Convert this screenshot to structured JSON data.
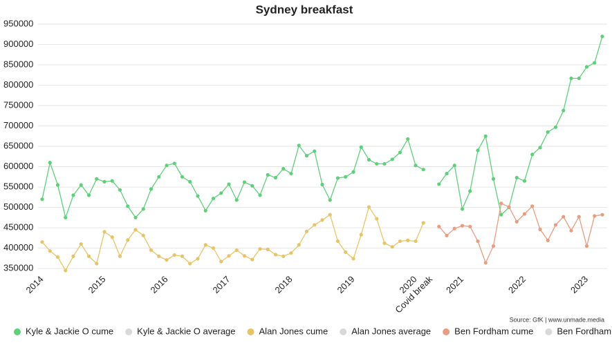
{
  "chart_data": {
    "type": "line",
    "title": "Sydney breakfast",
    "source": "Source: GfK | www.unmade.media",
    "categories": [
      "2014",
      null,
      null,
      null,
      null,
      null,
      null,
      null,
      "2015",
      null,
      null,
      null,
      null,
      null,
      null,
      null,
      "2016",
      null,
      null,
      null,
      null,
      null,
      null,
      null,
      "2017",
      null,
      null,
      null,
      null,
      null,
      null,
      null,
      "2018",
      null,
      null,
      null,
      null,
      null,
      null,
      null,
      "2019",
      null,
      null,
      null,
      null,
      null,
      null,
      null,
      "2020",
      null,
      "Covid break",
      null,
      null,
      null,
      "2021",
      null,
      null,
      null,
      null,
      null,
      null,
      null,
      "2022",
      null,
      null,
      null,
      null,
      null,
      null,
      null,
      "2023",
      null,
      null
    ],
    "ylim": [
      340000,
      950000
    ],
    "yticks": [
      350000,
      400000,
      450000,
      500000,
      550000,
      600000,
      650000,
      700000,
      750000,
      800000,
      850000,
      900000,
      950000
    ],
    "grid": true,
    "series": [
      {
        "name": "Kyle & Jackie O cume",
        "color": "#5fd07a",
        "values": [
          520000,
          610000,
          555000,
          475000,
          530000,
          555000,
          530000,
          570000,
          563000,
          565000,
          543000,
          503000,
          475000,
          496000,
          545000,
          575000,
          603000,
          608000,
          575000,
          563000,
          528000,
          492000,
          522000,
          535000,
          557000,
          518000,
          562000,
          553000,
          530000,
          580000,
          573000,
          595000,
          583000,
          652000,
          627000,
          638000,
          556000,
          518000,
          572000,
          575000,
          587000,
          648000,
          617000,
          607000,
          607000,
          618000,
          635000,
          668000,
          603000,
          593000,
          null,
          557000,
          583000,
          603000,
          496000,
          540000,
          640000,
          675000,
          570000,
          482000,
          500000,
          573000,
          565000,
          630000,
          647000,
          685000,
          697000,
          738000,
          817000,
          817000,
          845000,
          855000,
          920000
        ]
      },
      {
        "name": "Kyle & Jackie O average",
        "color": "#d9d9d9",
        "values": [
          null,
          null,
          null,
          null,
          null,
          null,
          null,
          null,
          null,
          null,
          null,
          null,
          null,
          null,
          null,
          null,
          null,
          null,
          null,
          null,
          null,
          null,
          null,
          null,
          null,
          null,
          null,
          null,
          null,
          null,
          null,
          null,
          null,
          null,
          null,
          null,
          null,
          null,
          null,
          null,
          null,
          null,
          null,
          null,
          null,
          null,
          null,
          null,
          null,
          null,
          null,
          null,
          null,
          null,
          null,
          null,
          null,
          null,
          null,
          null,
          null,
          null,
          null,
          null,
          null,
          null,
          null,
          null,
          null,
          null,
          null,
          null,
          null
        ]
      },
      {
        "name": "Alan Jones cume",
        "color": "#e8c468",
        "values": [
          415000,
          393000,
          378000,
          345000,
          380000,
          410000,
          380000,
          362000,
          440000,
          427000,
          380000,
          420000,
          445000,
          431000,
          395000,
          380000,
          371000,
          383000,
          380000,
          362000,
          374000,
          408000,
          400000,
          367000,
          381000,
          395000,
          381000,
          372000,
          398000,
          397000,
          384000,
          380000,
          388000,
          408000,
          441000,
          457000,
          469000,
          482000,
          417000,
          390000,
          374000,
          433000,
          501000,
          472000,
          412000,
          403000,
          417000,
          419000,
          417000,
          462000,
          null,
          null,
          null,
          null,
          null,
          null,
          null,
          null,
          null,
          null,
          null,
          null,
          null,
          null,
          null,
          null,
          null,
          null,
          null,
          null,
          null,
          null,
          null
        ]
      },
      {
        "name": "Alan Jones average",
        "color": "#d9d9d9",
        "values": [
          null,
          null,
          null,
          null,
          null,
          null,
          null,
          null,
          null,
          null,
          null,
          null,
          null,
          null,
          null,
          null,
          null,
          null,
          null,
          null,
          null,
          null,
          null,
          null,
          null,
          null,
          null,
          null,
          null,
          null,
          null,
          null,
          null,
          null,
          null,
          null,
          null,
          null,
          null,
          null,
          null,
          null,
          null,
          null,
          null,
          null,
          null,
          null,
          null,
          null,
          null,
          null,
          null,
          null,
          null,
          null,
          null,
          null,
          null,
          null,
          null,
          null,
          null,
          null,
          null,
          null,
          null,
          null,
          null,
          null,
          null,
          null,
          null
        ]
      },
      {
        "name": "Ben Fordham cume",
        "color": "#e89c80",
        "values": [
          null,
          null,
          null,
          null,
          null,
          null,
          null,
          null,
          null,
          null,
          null,
          null,
          null,
          null,
          null,
          null,
          null,
          null,
          null,
          null,
          null,
          null,
          null,
          null,
          null,
          null,
          null,
          null,
          null,
          null,
          null,
          null,
          null,
          null,
          null,
          null,
          null,
          null,
          null,
          null,
          null,
          null,
          null,
          null,
          null,
          null,
          null,
          null,
          null,
          null,
          null,
          453000,
          431000,
          448000,
          455000,
          453000,
          417000,
          364000,
          405000,
          510000,
          501000,
          465000,
          484000,
          503000,
          446000,
          419000,
          457000,
          477000,
          443000,
          477000,
          405000,
          479000,
          482000
        ]
      },
      {
        "name": "Ben Fordham average",
        "color": "#d9d9d9",
        "values": [
          null,
          null,
          null,
          null,
          null,
          null,
          null,
          null,
          null,
          null,
          null,
          null,
          null,
          null,
          null,
          null,
          null,
          null,
          null,
          null,
          null,
          null,
          null,
          null,
          null,
          null,
          null,
          null,
          null,
          null,
          null,
          null,
          null,
          null,
          null,
          null,
          null,
          null,
          null,
          null,
          null,
          null,
          null,
          null,
          null,
          null,
          null,
          null,
          null,
          null,
          null,
          null,
          null,
          null,
          null,
          null,
          null,
          null,
          null,
          null,
          null,
          null,
          null,
          null,
          null,
          null,
          null,
          null,
          null,
          null,
          null,
          null,
          null
        ]
      }
    ]
  }
}
